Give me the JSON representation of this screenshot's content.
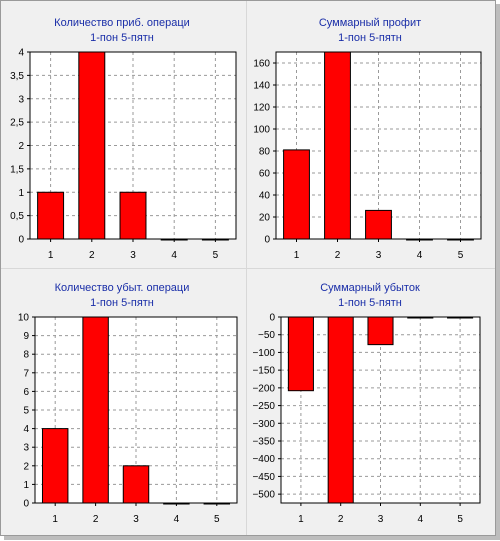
{
  "chart_data": [
    {
      "type": "bar",
      "title": "Количество приб. операци",
      "subtitle": "1-пон 5-пятн",
      "categories": [
        "1",
        "2",
        "3",
        "4",
        "5"
      ],
      "values": [
        1,
        4,
        1,
        0,
        0
      ],
      "ylim": [
        0,
        4
      ],
      "yticks": [
        "0",
        "0,5",
        "1",
        "1,5",
        "2",
        "2,5",
        "3",
        "3,5",
        "4"
      ],
      "ytick_values": [
        0,
        0.5,
        1,
        1.5,
        2,
        2.5,
        3,
        3.5,
        4
      ],
      "grid": true,
      "bar_color": "#ff0000"
    },
    {
      "type": "bar",
      "title": "Суммарный профит",
      "subtitle": "1-пон 5-пятн",
      "categories": [
        "1",
        "2",
        "3",
        "4",
        "5"
      ],
      "values": [
        81,
        170,
        26,
        0,
        0
      ],
      "ylim": [
        0,
        170
      ],
      "yticks": [
        "0",
        "20",
        "40",
        "60",
        "80",
        "100",
        "120",
        "140",
        "160"
      ],
      "ytick_values": [
        0,
        20,
        40,
        60,
        80,
        100,
        120,
        140,
        160
      ],
      "grid": true,
      "bar_color": "#ff0000"
    },
    {
      "type": "bar",
      "title": "Количество убыт. операци",
      "subtitle": "1-пон 5-пятн",
      "categories": [
        "1",
        "2",
        "3",
        "4",
        "5"
      ],
      "values": [
        4,
        10,
        2,
        0,
        0
      ],
      "ylim": [
        0,
        10
      ],
      "yticks": [
        "0",
        "1",
        "2",
        "3",
        "4",
        "5",
        "6",
        "7",
        "8",
        "9",
        "10"
      ],
      "ytick_values": [
        0,
        1,
        2,
        3,
        4,
        5,
        6,
        7,
        8,
        9,
        10
      ],
      "grid": true,
      "bar_color": "#ff0000"
    },
    {
      "type": "bar",
      "title": "Суммарный убыток",
      "subtitle": "1-пон 5-пятн",
      "categories": [
        "1",
        "2",
        "3",
        "4",
        "5"
      ],
      "values": [
        -208,
        -525,
        -78,
        -1,
        -2
      ],
      "ylim": [
        -525,
        0
      ],
      "yticks": [
        "0",
        "−50",
        "−100",
        "−150",
        "−200",
        "−250",
        "−300",
        "−350",
        "−400",
        "−450",
        "−500"
      ],
      "ytick_values": [
        0,
        -50,
        -100,
        -150,
        -200,
        -250,
        -300,
        -350,
        -400,
        -450,
        -500
      ],
      "grid": true,
      "bar_color": "#ff0000"
    }
  ]
}
